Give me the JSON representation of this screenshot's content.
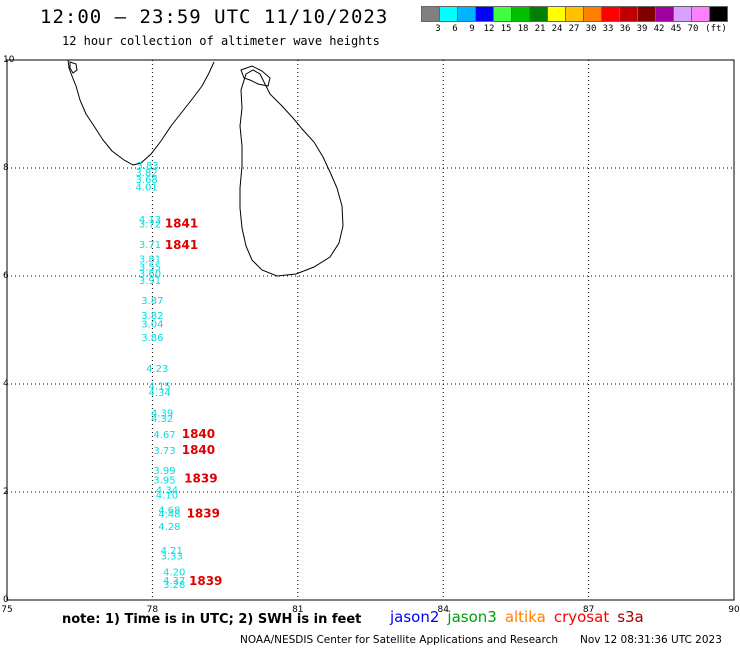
{
  "header": {
    "title": "12:00 – 23:59 UTC 11/10/2023",
    "subtitle": "12 hour collection of altimeter wave heights"
  },
  "legend": {
    "colors": [
      "#808080",
      "#00ffff",
      "#00b4ff",
      "#0000ff",
      "#40ff40",
      "#00c000",
      "#008000",
      "#ffff00",
      "#ffc000",
      "#ff8000",
      "#ff0000",
      "#c00000",
      "#800000",
      "#a000a0",
      "#d8a0ff",
      "#ff80ff",
      "#000000"
    ],
    "labels": [
      "3",
      "6",
      "9",
      "12",
      "15",
      "18",
      "21",
      "24",
      "27",
      "30",
      "33",
      "36",
      "39",
      "42",
      "45",
      "70"
    ],
    "unit": "(ft)"
  },
  "map": {
    "lon_range": [
      75,
      90
    ],
    "lat_range": [
      0,
      10
    ],
    "x_ticks": [
      "75",
      "78",
      "81",
      "84",
      "87",
      "90"
    ],
    "y_ticks": [
      "0",
      "2",
      "4",
      "6",
      "8",
      "10"
    ],
    "land_color": "#000000",
    "grid": true,
    "grid_style": "dotted"
  },
  "observations": [
    {
      "lon": 77.9,
      "lat": 7.98,
      "swh": "3.83"
    },
    {
      "lon": 77.88,
      "lat": 7.85,
      "swh": "3.82"
    },
    {
      "lon": 77.88,
      "lat": 7.72,
      "swh": "3.68"
    },
    {
      "lon": 77.88,
      "lat": 7.58,
      "swh": "4.01"
    },
    {
      "lon": 77.95,
      "lat": 6.98,
      "swh": "4.13"
    },
    {
      "lon": 77.95,
      "lat": 6.9,
      "swh": "3.72"
    },
    {
      "lon": 77.95,
      "lat": 6.52,
      "swh": "3.71"
    },
    {
      "lon": 77.95,
      "lat": 6.25,
      "swh": "3.81"
    },
    {
      "lon": 77.95,
      "lat": 6.1,
      "swh": "3.55"
    },
    {
      "lon": 77.95,
      "lat": 5.98,
      "swh": "3.60"
    },
    {
      "lon": 77.95,
      "lat": 5.85,
      "swh": "3.91"
    },
    {
      "lon": 78.0,
      "lat": 5.48,
      "swh": "3.87"
    },
    {
      "lon": 78.0,
      "lat": 5.2,
      "swh": "3.82"
    },
    {
      "lon": 78.0,
      "lat": 5.05,
      "swh": "3.04"
    },
    {
      "lon": 78.0,
      "lat": 4.8,
      "swh": "3.86"
    },
    {
      "lon": 78.1,
      "lat": 4.22,
      "swh": "4.23"
    },
    {
      "lon": 78.15,
      "lat": 3.9,
      "swh": "4.15"
    },
    {
      "lon": 78.15,
      "lat": 3.78,
      "swh": "4.34"
    },
    {
      "lon": 78.2,
      "lat": 3.4,
      "swh": "4.39"
    },
    {
      "lon": 78.2,
      "lat": 3.3,
      "swh": "4.32"
    },
    {
      "lon": 78.25,
      "lat": 3.0,
      "swh": "4.67"
    },
    {
      "lon": 78.25,
      "lat": 2.7,
      "swh": "3.73"
    },
    {
      "lon": 78.25,
      "lat": 2.33,
      "swh": "3.99"
    },
    {
      "lon": 78.25,
      "lat": 2.16,
      "swh": "3.95"
    },
    {
      "lon": 78.3,
      "lat": 1.97,
      "swh": "4.34"
    },
    {
      "lon": 78.3,
      "lat": 1.88,
      "swh": "4.10"
    },
    {
      "lon": 78.35,
      "lat": 1.6,
      "swh": "4.68"
    },
    {
      "lon": 78.35,
      "lat": 1.53,
      "swh": "4.48"
    },
    {
      "lon": 78.35,
      "lat": 1.3,
      "swh": "4.28"
    },
    {
      "lon": 78.4,
      "lat": 0.85,
      "swh": "4.21"
    },
    {
      "lon": 78.4,
      "lat": 0.75,
      "swh": "3.33"
    },
    {
      "lon": 78.45,
      "lat": 0.45,
      "swh": "4.20"
    },
    {
      "lon": 78.45,
      "lat": 0.3,
      "swh": "4.37"
    },
    {
      "lon": 78.45,
      "lat": 0.22,
      "swh": "3.28"
    }
  ],
  "times": [
    {
      "lon": 78.6,
      "lat": 6.9,
      "label": "1841"
    },
    {
      "lon": 78.6,
      "lat": 6.5,
      "label": "1841"
    },
    {
      "lon": 78.95,
      "lat": 3.0,
      "label": "1840"
    },
    {
      "lon": 78.95,
      "lat": 2.7,
      "label": "1840"
    },
    {
      "lon": 79.0,
      "lat": 2.18,
      "label": "1839"
    },
    {
      "lon": 79.05,
      "lat": 1.53,
      "label": "1839"
    },
    {
      "lon": 79.1,
      "lat": 0.28,
      "label": "1839"
    }
  ],
  "footer": {
    "note": "note:  1) Time is in UTC; 2) SWH is in feet",
    "satellites": [
      {
        "name": "jason2",
        "color": "#0000ff"
      },
      {
        "name": "jason3",
        "color": "#00a000"
      },
      {
        "name": "altika",
        "color": "#ff8000"
      },
      {
        "name": "cryosat",
        "color": "#ff0000"
      },
      {
        "name": "s3a",
        "color": "#a00000"
      }
    ],
    "credit": "NOAA/NESDIS Center for Satellite Applications and Research",
    "timestamp": "Nov 12 08:31:36 UTC 2023"
  }
}
